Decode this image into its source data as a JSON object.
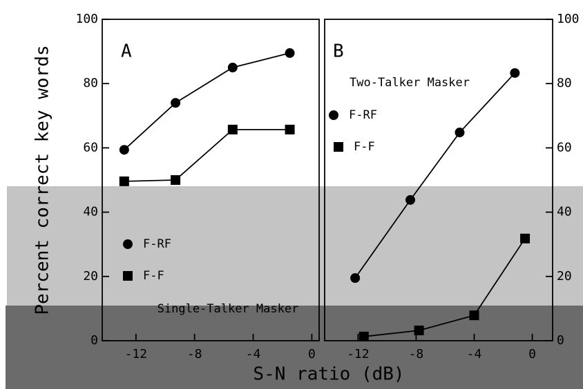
{
  "chart_data": [
    {
      "type": "line",
      "panel_label": "A",
      "ylabel": "Percent correct key words",
      "xlabel": "S-N ratio (dB)",
      "legend_title": "Single-Talker Masker",
      "xlim": [
        -14.3,
        0.5
      ],
      "xticks": [
        -12,
        -8,
        -4,
        0
      ],
      "ylim": [
        0,
        100
      ],
      "yticks": [
        0,
        20,
        40,
        60,
        80,
        100
      ],
      "series": [
        {
          "name": "F-RF",
          "color": "#000000",
          "marker": "circle",
          "x": [
            -12.8,
            -9.3,
            -5.4,
            -1.5
          ],
          "values": [
            59.4,
            74,
            85,
            89.5
          ]
        },
        {
          "name": "F-F",
          "color": "#000000",
          "marker": "square",
          "x": [
            -12.8,
            -9.3,
            -5.4,
            -1.5
          ],
          "values": [
            49.6,
            50,
            65.7,
            65.7
          ]
        }
      ]
    },
    {
      "type": "line",
      "panel_label": "B",
      "legend_title": "Two-Talker Masker",
      "xlim": [
        -14.3,
        1.4
      ],
      "xticks": [
        -12,
        -8,
        -4,
        0
      ],
      "ylim": [
        0,
        100
      ],
      "yticks": [
        0,
        20,
        40,
        60,
        80,
        100
      ],
      "series": [
        {
          "name": "F-RF",
          "color": "#000000",
          "marker": "circle",
          "x": [
            -12.2,
            -8.4,
            -5,
            -1.2
          ],
          "values": [
            19.5,
            43.8,
            64.8,
            83.3
          ]
        },
        {
          "name": "F-F",
          "color": "#000000",
          "marker": "square",
          "x": [
            -11.6,
            -7.8,
            -4,
            -0.5
          ],
          "values": [
            1.3,
            3.2,
            7.9,
            31.8
          ]
        }
      ]
    }
  ]
}
